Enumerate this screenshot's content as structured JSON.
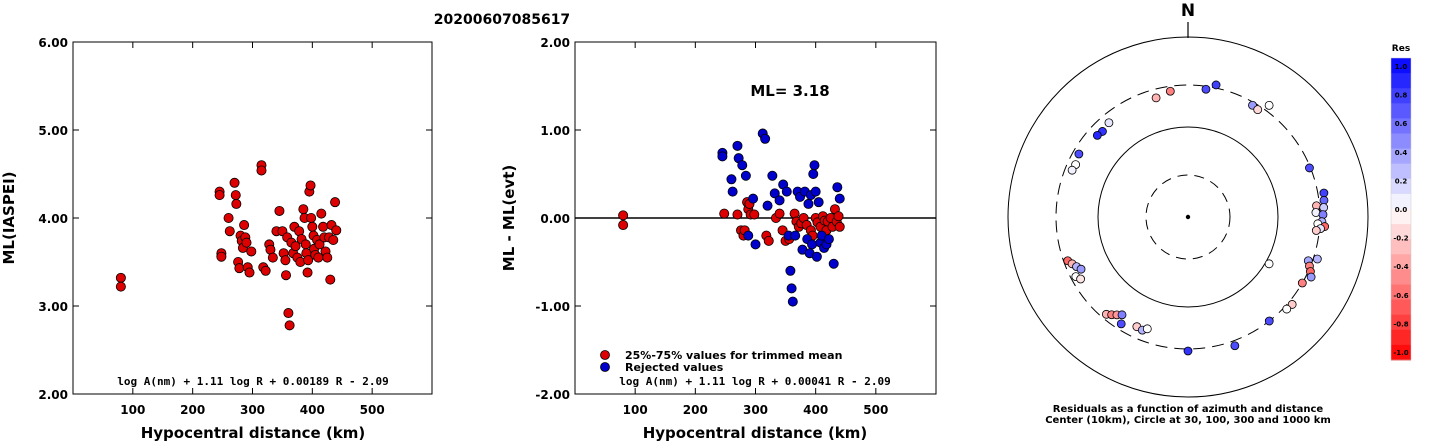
{
  "page_title": "20200607085617",
  "chart_data": [
    {
      "type": "scatter",
      "title": "",
      "xlabel": "Hypocentral distance (km)",
      "ylabel": "ML(IASPEI)",
      "xlim": [
        0,
        600
      ],
      "ylim": [
        2.0,
        6.0
      ],
      "x_ticks": [
        100,
        200,
        300,
        400,
        500
      ],
      "x_tick_labels": [
        "100",
        "200",
        "300",
        "400",
        "500"
      ],
      "y_ticks": [
        2.0,
        3.0,
        4.0,
        5.0,
        6.0
      ],
      "y_tick_labels": [
        "2.00",
        "3.00",
        "4.00",
        "5.00",
        "6.00"
      ],
      "formula": "log A(nm) + 1.11 log R + 0.00189 R - 2.09",
      "colors": {
        "point": "#dd0000"
      },
      "series": [
        {
          "points": [
            [
              80,
              3.32
            ],
            [
              80,
              3.22
            ],
            [
              245,
              4.3
            ],
            [
              245,
              4.26
            ],
            [
              248,
              3.6
            ],
            [
              248,
              3.56
            ],
            [
              260,
              4.0
            ],
            [
              262,
              3.85
            ],
            [
              270,
              4.4
            ],
            [
              272,
              4.26
            ],
            [
              273,
              4.16
            ],
            [
              276,
              3.5
            ],
            [
              278,
              3.43
            ],
            [
              280,
              3.8
            ],
            [
              282,
              3.74
            ],
            [
              284,
              3.66
            ],
            [
              286,
              3.92
            ],
            [
              288,
              3.78
            ],
            [
              290,
              3.72
            ],
            [
              292,
              3.44
            ],
            [
              295,
              3.38
            ],
            [
              298,
              3.62
            ],
            [
              315,
              4.6
            ],
            [
              315,
              4.54
            ],
            [
              318,
              3.44
            ],
            [
              322,
              3.4
            ],
            [
              328,
              3.7
            ],
            [
              330,
              3.64
            ],
            [
              334,
              3.55
            ],
            [
              340,
              3.85
            ],
            [
              345,
              4.08
            ],
            [
              350,
              3.85
            ],
            [
              352,
              3.6
            ],
            [
              355,
              3.52
            ],
            [
              356,
              3.35
            ],
            [
              358,
              3.78
            ],
            [
              360,
              2.92
            ],
            [
              362,
              2.78
            ],
            [
              365,
              3.72
            ],
            [
              368,
              3.6
            ],
            [
              370,
              3.9
            ],
            [
              372,
              3.68
            ],
            [
              375,
              3.55
            ],
            [
              378,
              3.85
            ],
            [
              380,
              3.5
            ],
            [
              382,
              3.76
            ],
            [
              385,
              4.1
            ],
            [
              387,
              4.0
            ],
            [
              389,
              3.7
            ],
            [
              390,
              3.6
            ],
            [
              392,
              3.38
            ],
            [
              393,
              3.52
            ],
            [
              395,
              4.3
            ],
            [
              397,
              4.37
            ],
            [
              398,
              4.0
            ],
            [
              400,
              3.9
            ],
            [
              402,
              3.8
            ],
            [
              403,
              3.65
            ],
            [
              405,
              3.58
            ],
            [
              408,
              3.75
            ],
            [
              410,
              3.55
            ],
            [
              412,
              3.7
            ],
            [
              415,
              4.05
            ],
            [
              418,
              3.9
            ],
            [
              420,
              3.78
            ],
            [
              422,
              3.62
            ],
            [
              425,
              3.55
            ],
            [
              428,
              3.78
            ],
            [
              430,
              3.3
            ],
            [
              432,
              3.92
            ],
            [
              435,
              3.75
            ],
            [
              438,
              4.18
            ],
            [
              440,
              3.86
            ]
          ]
        }
      ]
    },
    {
      "type": "scatter",
      "title": "",
      "xlabel": "Hypocentral distance (km)",
      "ylabel": "ML - ML(evt)",
      "xlim": [
        0,
        600
      ],
      "ylim": [
        -2.0,
        2.0
      ],
      "x_ticks": [
        100,
        200,
        300,
        400,
        500
      ],
      "x_tick_labels": [
        "100",
        "200",
        "300",
        "400",
        "500"
      ],
      "y_ticks": [
        -2.0,
        -1.0,
        0.0,
        1.0,
        2.0
      ],
      "y_tick_labels": [
        "-2.00",
        "-1.00",
        "0.00",
        "1.00",
        "2.00"
      ],
      "annotation": "ML= 3.18",
      "formula": "log A(nm) + 1.11 log R + 0.00041 R - 2.09",
      "legend_position": "bottom-left",
      "colors": {
        "trimmed": "#dd0000",
        "rejected": "#0000cc"
      },
      "series": [
        {
          "name": "25%-75% values for trimmed mean",
          "points": [
            [
              80,
              0.03
            ],
            [
              80,
              -0.08
            ],
            [
              248,
              0.05
            ],
            [
              270,
              0.04
            ],
            [
              276,
              -0.14
            ],
            [
              280,
              -0.2
            ],
            [
              282,
              -0.14
            ],
            [
              286,
              0.18
            ],
            [
              288,
              0.1
            ],
            [
              290,
              0.16
            ],
            [
              292,
              0.04
            ],
            [
              298,
              0.04
            ],
            [
              318,
              -0.2
            ],
            [
              322,
              -0.26
            ],
            [
              334,
              0.0
            ],
            [
              340,
              0.05
            ],
            [
              345,
              -0.14
            ],
            [
              350,
              -0.26
            ],
            [
              356,
              -0.24
            ],
            [
              365,
              0.05
            ],
            [
              368,
              -0.04
            ],
            [
              372,
              -0.1
            ],
            [
              376,
              -0.06
            ],
            [
              380,
              0.0
            ],
            [
              385,
              -0.08
            ],
            [
              392,
              -0.14
            ],
            [
              395,
              -0.2
            ],
            [
              400,
              0.0
            ],
            [
              403,
              -0.05
            ],
            [
              408,
              -0.1
            ],
            [
              412,
              0.02
            ],
            [
              415,
              -0.03
            ],
            [
              418,
              -0.14
            ],
            [
              420,
              -0.04
            ],
            [
              425,
              0.0
            ],
            [
              428,
              -0.1
            ],
            [
              432,
              0.1
            ],
            [
              435,
              -0.04
            ],
            [
              438,
              0.02
            ],
            [
              440,
              -0.1
            ]
          ]
        },
        {
          "name": "Rejected values",
          "points": [
            [
              245,
              0.74
            ],
            [
              245,
              0.7
            ],
            [
              260,
              0.44
            ],
            [
              262,
              0.3
            ],
            [
              270,
              0.82
            ],
            [
              272,
              0.68
            ],
            [
              278,
              0.6
            ],
            [
              284,
              0.48
            ],
            [
              288,
              -0.2
            ],
            [
              296,
              0.22
            ],
            [
              300,
              -0.3
            ],
            [
              312,
              0.96
            ],
            [
              316,
              0.9
            ],
            [
              320,
              0.14
            ],
            [
              328,
              0.48
            ],
            [
              332,
              0.28
            ],
            [
              340,
              0.2
            ],
            [
              346,
              0.38
            ],
            [
              352,
              0.3
            ],
            [
              355,
              -0.2
            ],
            [
              358,
              -0.6
            ],
            [
              360,
              -0.8
            ],
            [
              362,
              -0.95
            ],
            [
              366,
              -0.2
            ],
            [
              370,
              0.3
            ],
            [
              374,
              0.24
            ],
            [
              378,
              -0.36
            ],
            [
              382,
              0.3
            ],
            [
              386,
              -0.24
            ],
            [
              388,
              0.16
            ],
            [
              390,
              -0.4
            ],
            [
              392,
              0.26
            ],
            [
              394,
              -0.3
            ],
            [
              396,
              0.5
            ],
            [
              398,
              0.6
            ],
            [
              400,
              0.3
            ],
            [
              402,
              -0.44
            ],
            [
              405,
              0.18
            ],
            [
              408,
              -0.28
            ],
            [
              410,
              -0.2
            ],
            [
              414,
              -0.34
            ],
            [
              418,
              -0.3
            ],
            [
              422,
              -0.24
            ],
            [
              430,
              -0.52
            ],
            [
              436,
              0.35
            ],
            [
              440,
              0.22
            ]
          ]
        }
      ]
    },
    {
      "type": "scatter",
      "subtype": "polar",
      "title": "N",
      "caption_line1": "Residuals as a function of azimuth and distance",
      "caption_line2": "Center (10km), Circle at 30, 100, 300 and 1000 km",
      "colorbar_label": "Res",
      "colorbar_ticks": [
        "1.0",
        "0.8",
        "0.6",
        "0.4",
        "0.2",
        "0.0",
        "-0.2",
        "-0.4",
        "-0.6",
        "-0.8",
        "-1.0"
      ],
      "colors": {
        "positive": "#0000ff",
        "negative": "#ff0000",
        "zero": "#ffffff"
      },
      "points": [
        [
          -15,
          310,
          -0.3
        ],
        [
          -8,
          300,
          -0.5
        ],
        [
          8,
          300,
          0.7
        ],
        [
          12,
          300,
          0.75
        ],
        [
          30,
          300,
          0.4
        ],
        [
          33,
          300,
          -0.15
        ],
        [
          36,
          300,
          0.0
        ],
        [
          -40,
          300,
          0.1
        ],
        [
          -45,
          300,
          0.8
        ],
        [
          -48,
          300,
          0.85
        ],
        [
          -60,
          300,
          0.7
        ],
        [
          -65,
          300,
          0.0
        ],
        [
          -68,
          300,
          0.05
        ],
        [
          68,
          300,
          0.7
        ],
        [
          80,
          300,
          0.75
        ],
        [
          83,
          300,
          0.6
        ],
        [
          85,
          300,
          -0.3
        ],
        [
          86,
          300,
          0.2
        ],
        [
          88,
          300,
          0.05
        ],
        [
          89,
          300,
          0.5
        ],
        [
          92,
          300,
          0.3
        ],
        [
          93,
          300,
          0.0
        ],
        [
          94,
          300,
          -0.6
        ],
        [
          95,
          300,
          0.1
        ],
        [
          96,
          300,
          -0.2
        ],
        [
          108,
          300,
          0.3
        ],
        [
          110,
          300,
          0.35
        ],
        [
          112,
          300,
          -0.5
        ],
        [
          114,
          300,
          -0.6
        ],
        [
          116,
          300,
          0.4
        ],
        [
          120,
          300,
          -0.5
        ],
        [
          130,
          300,
          -0.2
        ],
        [
          133,
          300,
          0.0
        ],
        [
          142,
          300,
          0.7
        ],
        [
          160,
          300,
          0.7
        ],
        [
          180,
          300,
          0.8
        ],
        [
          -110,
          300,
          -0.6
        ],
        [
          -112,
          300,
          -0.3
        ],
        [
          -114,
          300,
          0.3
        ],
        [
          -116,
          300,
          0.4
        ],
        [
          -118,
          300,
          0.0
        ],
        [
          -120,
          300,
          -0.1
        ],
        [
          -140,
          300,
          -0.3
        ],
        [
          -142,
          300,
          -0.5
        ],
        [
          -144,
          300,
          -0.4
        ],
        [
          -146,
          300,
          0.5
        ],
        [
          -148,
          300,
          0.7
        ],
        [
          -155,
          300,
          -0.2
        ],
        [
          -158,
          300,
          0.3
        ],
        [
          -160,
          300,
          0.0
        ],
        [
          120,
          110,
          0.0
        ]
      ]
    }
  ]
}
